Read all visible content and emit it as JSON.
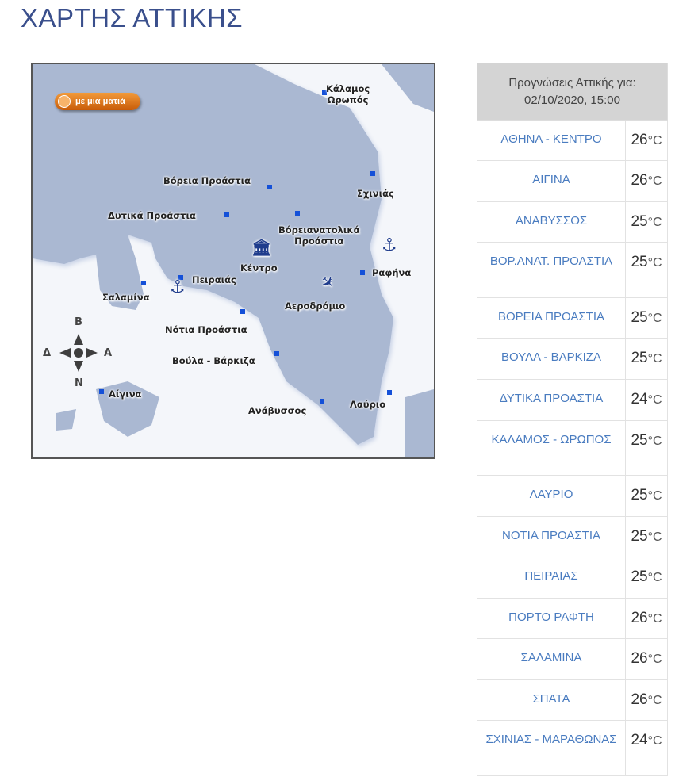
{
  "page_title": "ΧΑΡΤΗΣ ΑΤΤΙΚΗΣ",
  "map": {
    "badge": "με μια ματιά",
    "compass": {
      "north": "B",
      "south": "N",
      "east": "A",
      "west": "Δ"
    },
    "labels": [
      {
        "id": "kalamos",
        "text": "Κάλαμος\nΩρωπός"
      },
      {
        "id": "voreia",
        "text": "Βόρεια Προάστια"
      },
      {
        "id": "dytika",
        "text": "Δυτικά Προάστια"
      },
      {
        "id": "schinias",
        "text": "Σχινιάς"
      },
      {
        "id": "voreioanatolika",
        "text": "Βόρειανατολικά\nΠροάστια"
      },
      {
        "id": "kentro",
        "text": "Κέντρο"
      },
      {
        "id": "rafina",
        "text": "Ραφήνα"
      },
      {
        "id": "peiraias",
        "text": "Πειραιάς"
      },
      {
        "id": "salamina",
        "text": "Σαλαμίνα"
      },
      {
        "id": "aerodromio",
        "text": "Αεροδρόμιο"
      },
      {
        "id": "notia",
        "text": "Νότια Προάστια"
      },
      {
        "id": "voula",
        "text": "Βούλα - Βάρκιζα"
      },
      {
        "id": "aigina",
        "text": "Αίγινα"
      },
      {
        "id": "anavyssos",
        "text": "Ανάβυσσος"
      },
      {
        "id": "lavrio",
        "text": "Λαύριο"
      }
    ]
  },
  "forecast": {
    "header_line1": "Προγνώσεις Αττικής για:",
    "header_line2": "02/10/2020, 15:00",
    "unit": "°C",
    "rows": [
      {
        "name": "ΑΘΗΝΑ - ΚΕΝΤΡΟ",
        "temp": "26"
      },
      {
        "name": "ΑΙΓΙΝΑ",
        "temp": "26"
      },
      {
        "name": "ΑΝΑΒΥΣΣΟΣ",
        "temp": "25"
      },
      {
        "name": "ΒΟΡ.ΑΝΑΤ. ΠΡΟΑΣΤΙΑ",
        "temp": "25"
      },
      {
        "name": "ΒΟΡΕΙΑ ΠΡΟΑΣΤΙΑ",
        "temp": "25"
      },
      {
        "name": "ΒΟΥΛΑ - ΒΑΡΚΙΖΑ",
        "temp": "25"
      },
      {
        "name": "ΔΥΤΙΚΑ ΠΡΟΑΣΤΙΑ",
        "temp": "24"
      },
      {
        "name": "ΚΑΛΑΜΟΣ - ΩΡΩΠΟΣ",
        "temp": "25"
      },
      {
        "name": "ΛΑΥΡΙΟ",
        "temp": "25"
      },
      {
        "name": "ΝΟΤΙΑ ΠΡΟΑΣΤΙΑ",
        "temp": "25"
      },
      {
        "name": "ΠΕΙΡΑΙΑΣ",
        "temp": "25"
      },
      {
        "name": "ΠΟΡΤΟ ΡΑΦΤΗ",
        "temp": "26"
      },
      {
        "name": "ΣΑΛΑΜΙΝΑ",
        "temp": "26"
      },
      {
        "name": "ΣΠΑΤΑ",
        "temp": "26"
      },
      {
        "name": "ΣΧΙΝΙΑΣ - ΜΑΡΑΘΩΝΑΣ",
        "temp": "24"
      }
    ]
  }
}
